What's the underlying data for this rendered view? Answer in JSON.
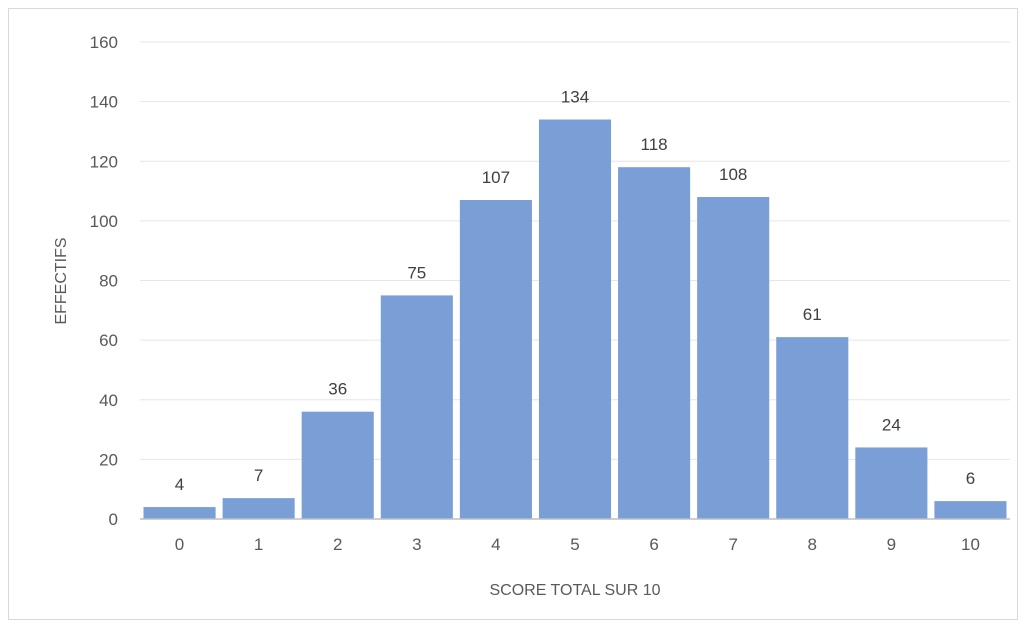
{
  "chart_data": {
    "type": "bar",
    "categories": [
      "0",
      "1",
      "2",
      "3",
      "4",
      "5",
      "6",
      "7",
      "8",
      "9",
      "10"
    ],
    "values": [
      4,
      7,
      36,
      75,
      107,
      134,
      118,
      108,
      61,
      24,
      6
    ],
    "title": "",
    "xlabel": "SCORE TOTAL SUR 10",
    "ylabel": "EFFECTIFS",
    "ylim": [
      0,
      160
    ],
    "yticks": [
      0,
      20,
      40,
      60,
      80,
      100,
      120,
      140,
      160
    ],
    "grid": true,
    "data_labels": true,
    "bar_color": "#7a9fd6",
    "gridline_color": "#e6e6e6",
    "axis_color": "#bfbfbf"
  }
}
